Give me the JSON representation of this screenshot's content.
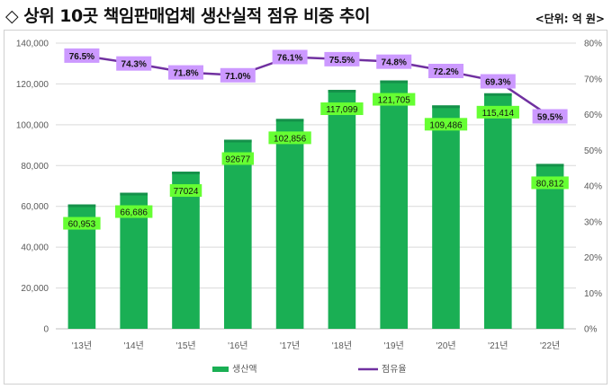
{
  "header": {
    "title": "◇ 상위 10곳 책임판매업체 생산실적 점유 비중 추이",
    "unit": "<단위: 억 원>"
  },
  "chart_data": {
    "type": "bar",
    "categories": [
      "'13년",
      "'14년",
      "'15년",
      "'16년",
      "'17년",
      "'18년",
      "'19년",
      "'20년",
      "'21년",
      "'22년"
    ],
    "series": [
      {
        "name": "생산액",
        "type": "bar",
        "axis": "left",
        "color": "#1aaf54",
        "values": [
          60953,
          66686,
          77024,
          92677,
          102856,
          117099,
          121705,
          109486,
          115414,
          80812
        ],
        "labels": [
          "60,953",
          "66,686",
          "77024",
          "92677",
          "102,856",
          "117,099",
          "121,705",
          "109,486",
          "115,414",
          "80,812"
        ],
        "label_bg": "#66ff33"
      },
      {
        "name": "점유율",
        "type": "line",
        "axis": "right",
        "color": "#7030a0",
        "values": [
          76.5,
          74.3,
          71.8,
          71.0,
          76.1,
          75.5,
          74.8,
          72.2,
          69.3,
          59.5
        ],
        "labels": [
          "76.5%",
          "74.3%",
          "71.8%",
          "71.0%",
          "76.1%",
          "75.5%",
          "74.8%",
          "72.2%",
          "69.3%",
          "59.5%"
        ],
        "label_bg": "#cc99ff"
      }
    ],
    "y_left": {
      "range": [
        0,
        140000
      ],
      "ticks": [
        "0",
        "20,000",
        "40,000",
        "60,000",
        "80,000",
        "100,000",
        "120,000",
        "140,000"
      ],
      "tick_values": [
        0,
        20000,
        40000,
        60000,
        80000,
        100000,
        120000,
        140000
      ]
    },
    "y_right": {
      "range": [
        0,
        80
      ],
      "ticks": [
        "0%",
        "10%",
        "20%",
        "30%",
        "40%",
        "50%",
        "60%",
        "70%",
        "80%"
      ],
      "tick_values": [
        0,
        10,
        20,
        30,
        40,
        50,
        60,
        70,
        80
      ]
    },
    "grid": true,
    "legend_position": "bottom"
  }
}
